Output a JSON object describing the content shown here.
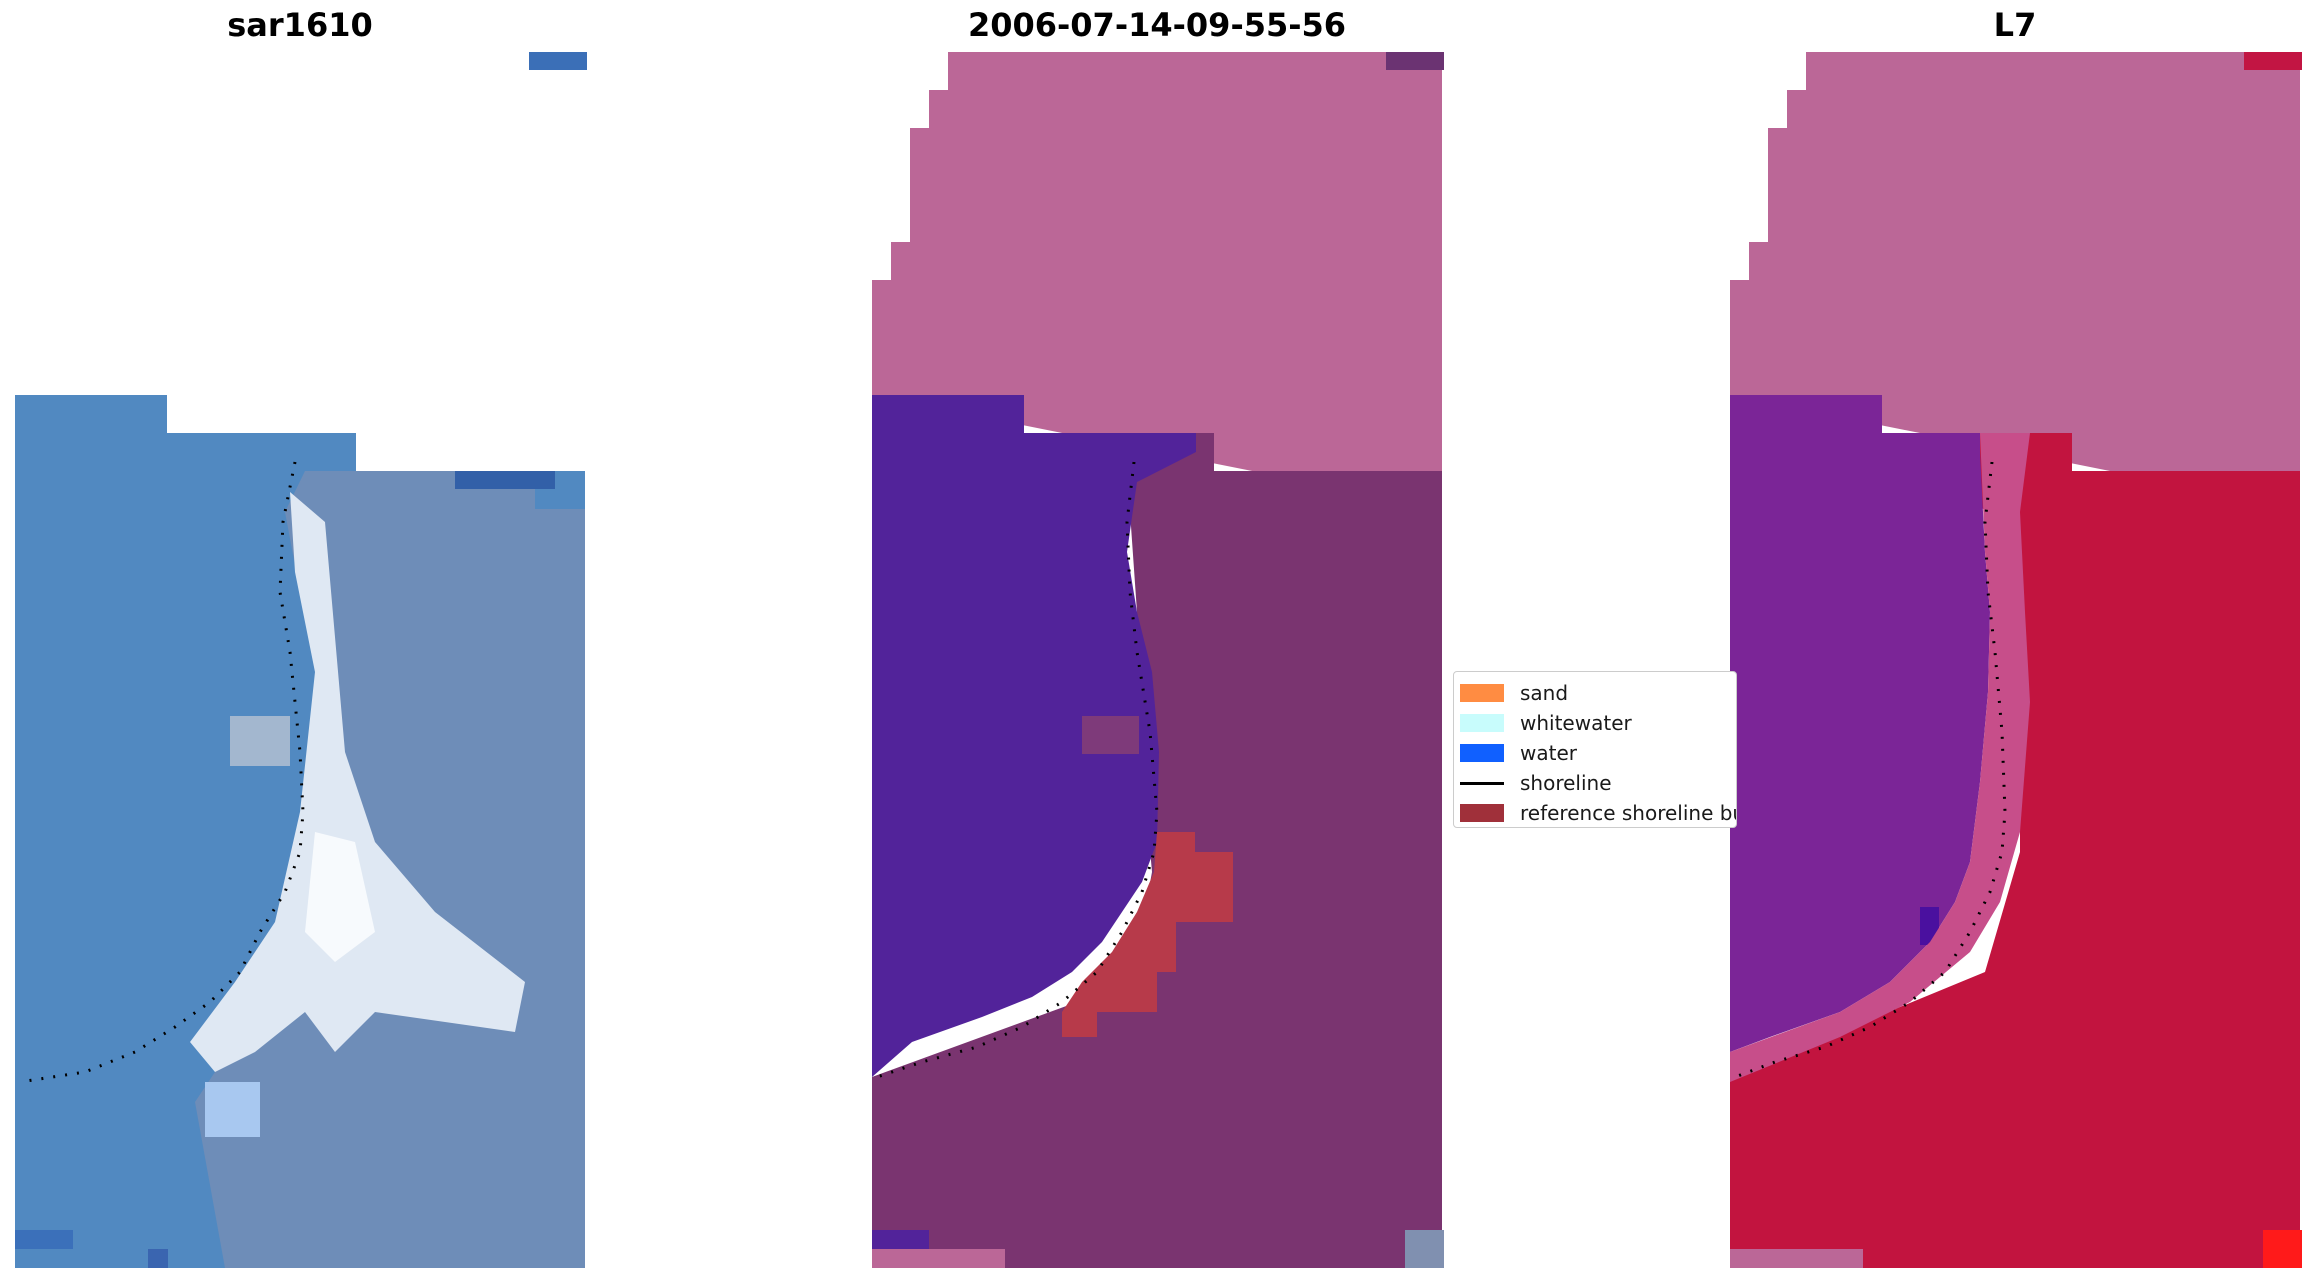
{
  "panels": [
    {
      "title": "sar1610"
    },
    {
      "title": "2006-07-14-09-55-56"
    },
    {
      "title": "L7"
    }
  ],
  "legend": {
    "items": [
      {
        "label": "sand",
        "color": "#ff8c42",
        "kind": "patch"
      },
      {
        "label": "whitewater",
        "color": "#c8fcfc",
        "kind": "patch"
      },
      {
        "label": "water",
        "color": "#1060ff",
        "kind": "patch"
      },
      {
        "label": "shoreline",
        "color": "#000000",
        "kind": "line"
      },
      {
        "label": "reference shoreline buffer",
        "color": "#a0303a",
        "kind": "patch"
      }
    ]
  },
  "colors": {
    "rgb_water": "#4f84bd",
    "rgb_land": "#6a8bb8",
    "rgb_white": "#f2f6fb",
    "class_sand": "#bb6797",
    "class_water": "#52239a",
    "class_buffer": "#b73a4a",
    "class_land": "#7a3470",
    "mndwi_water": "#7b2597",
    "mndwi_land": "#c2143f"
  }
}
